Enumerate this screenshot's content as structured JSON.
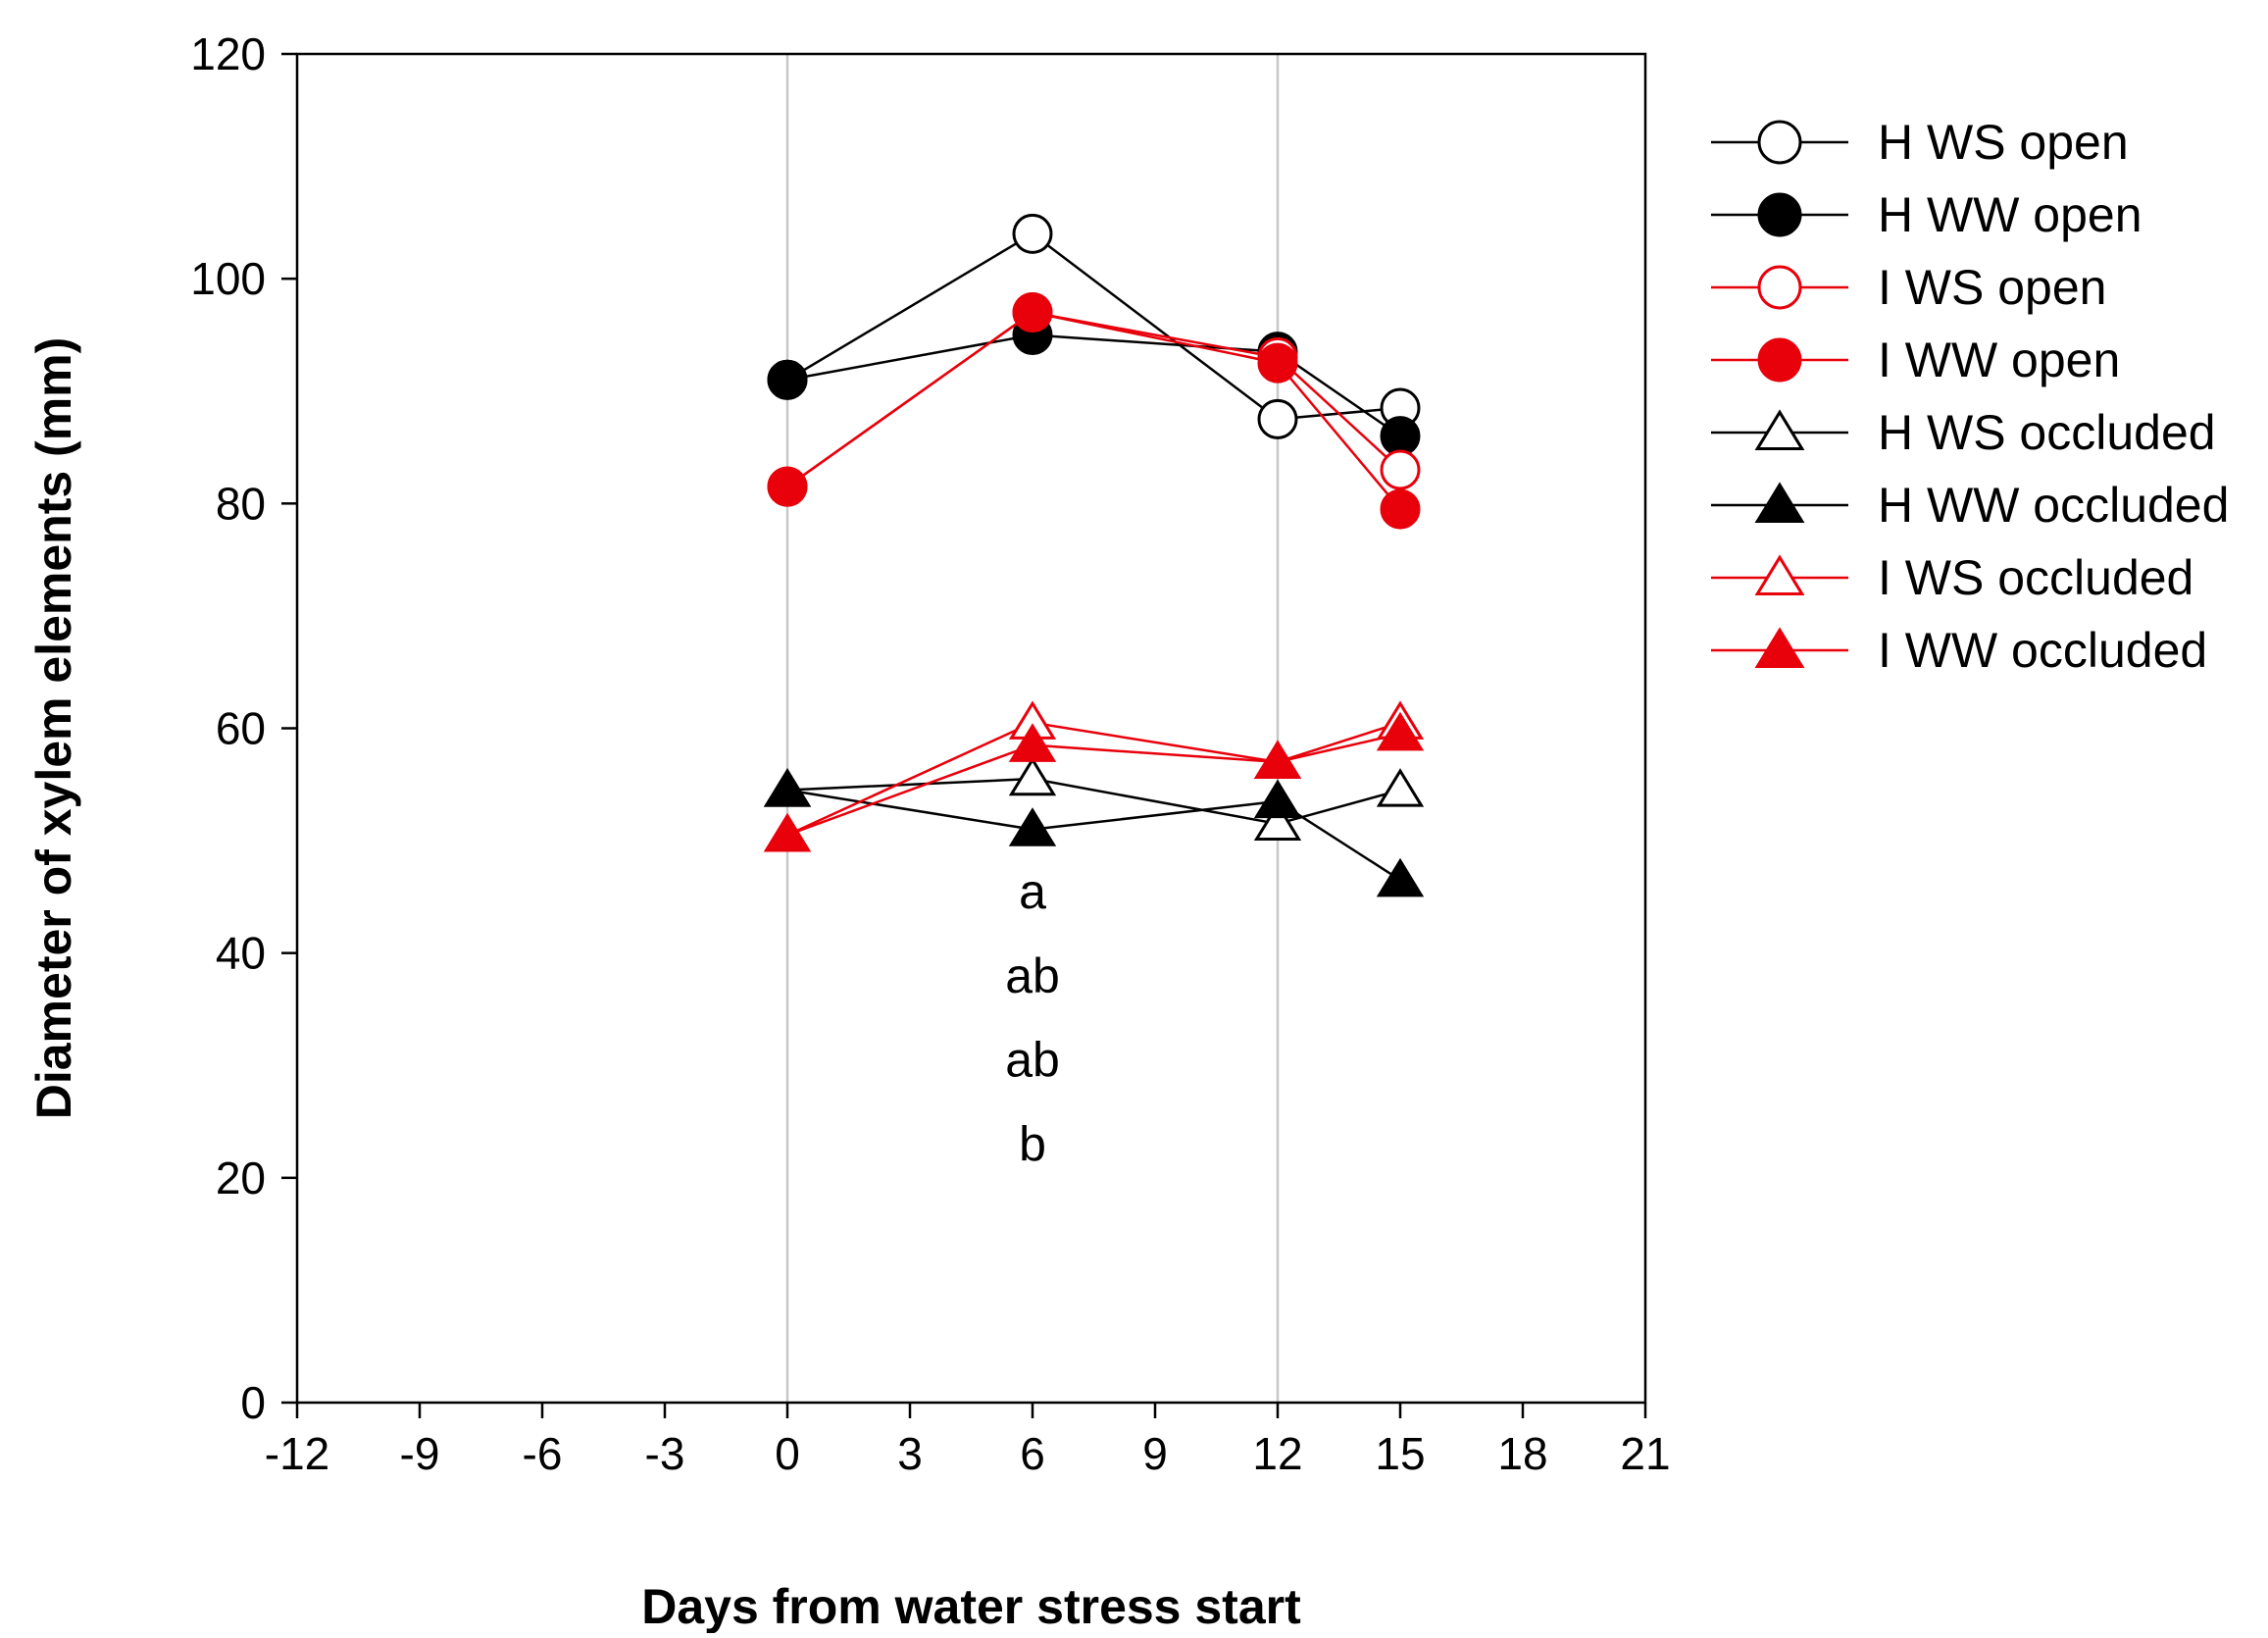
{
  "chart_data": {
    "type": "line",
    "title": "",
    "xlabel": "Days from water stress start",
    "ylabel": "Diameter of xylem elements (mm)",
    "xlim": [
      -12,
      21
    ],
    "ylim": [
      0,
      120
    ],
    "xticks": [
      -12,
      -9,
      -6,
      -3,
      0,
      3,
      6,
      9,
      12,
      15,
      18,
      21
    ],
    "yticks": [
      0,
      20,
      40,
      60,
      80,
      100,
      120
    ],
    "vertical_reference_lines": [
      0,
      12
    ],
    "legend_position": "right",
    "series": [
      {
        "name": "H WS open",
        "color": "#000000",
        "marker": "circle",
        "filled": false,
        "x": [
          0,
          6,
          12,
          15
        ],
        "y": [
          91,
          104,
          87.5,
          88.5
        ]
      },
      {
        "name": "H WW open",
        "color": "#000000",
        "marker": "circle",
        "filled": true,
        "x": [
          0,
          6,
          12,
          15
        ],
        "y": [
          91,
          95,
          93.5,
          86
        ]
      },
      {
        "name": "I WS open",
        "color": "#e8000b",
        "marker": "circle",
        "filled": false,
        "x": [
          0,
          6,
          12,
          15
        ],
        "y": [
          81.5,
          97,
          93,
          83
        ]
      },
      {
        "name": "I WW open",
        "color": "#e8000b",
        "marker": "circle",
        "filled": true,
        "x": [
          0,
          6,
          12,
          15
        ],
        "y": [
          81.5,
          97,
          92.5,
          79.5
        ]
      },
      {
        "name": "H WS occluded",
        "color": "#000000",
        "marker": "triangle",
        "filled": false,
        "x": [
          0,
          6,
          12,
          15
        ],
        "y": [
          54.5,
          55.5,
          51.5,
          54.5
        ]
      },
      {
        "name": "H WW occluded",
        "color": "#000000",
        "marker": "triangle",
        "filled": true,
        "x": [
          0,
          6,
          12,
          15
        ],
        "y": [
          54.5,
          51,
          53.5,
          46.5
        ]
      },
      {
        "name": "I WS occluded",
        "color": "#e8000b",
        "marker": "triangle",
        "filled": false,
        "x": [
          0,
          6,
          12,
          15
        ],
        "y": [
          50.5,
          60.5,
          57,
          60.5
        ]
      },
      {
        "name": "I WW occluded",
        "color": "#e8000b",
        "marker": "triangle",
        "filled": true,
        "x": [
          0,
          6,
          12,
          15
        ],
        "y": [
          50.5,
          58.5,
          57,
          59.5
        ]
      }
    ],
    "annotations": [
      {
        "text": "a",
        "x": 6,
        "y": 44
      },
      {
        "text": "ab",
        "x": 6,
        "y": 36.5
      },
      {
        "text": "ab",
        "x": 6,
        "y": 29
      },
      {
        "text": "b",
        "x": 6,
        "y": 21.5
      }
    ]
  }
}
